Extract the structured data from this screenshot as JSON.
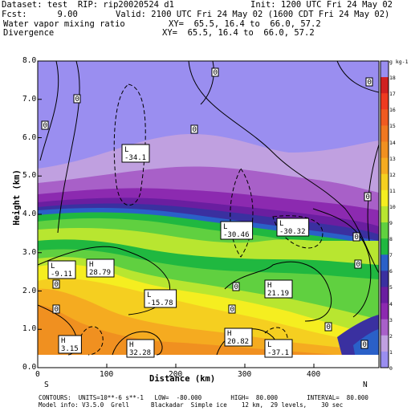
{
  "header": {
    "dataset_line": "Dataset: test  RIP: rip20020524 d1",
    "init_line": "Init: 1200 UTC Fri 24 May 02",
    "fcst_line": "Fcst:      9.00",
    "valid_line": "Valid: 2100 UTC Fri 24 May 02 (1600 CDT Fri 24 May 02)",
    "field1": "Water vapor mixing ratio",
    "xy1": "XY=  65.5, 16.4 to  66.0, 57.2",
    "field2": "Divergence",
    "xy2": "XY=  65.5, 16.4 to  66.0, 57.2"
  },
  "axes": {
    "ylabel": "Height (km)",
    "xlabel": "Distance (km)",
    "yticks": [
      "8.0",
      "7.0",
      "6.0",
      "5.0",
      "4.0",
      "3.0",
      "2.0",
      "1.0",
      "0.0"
    ],
    "xticks": [
      "0",
      "100",
      "200",
      "300",
      "400"
    ],
    "left_end": "S",
    "right_end": "N"
  },
  "colorbar": {
    "unit": "g kg-1",
    "ticks": [
      "18",
      "17",
      "16",
      "15",
      "14",
      "13",
      "12",
      "11",
      "10",
      "9",
      "8",
      "7",
      "6",
      "5",
      "4",
      "3",
      "2",
      "1",
      "0"
    ],
    "colors": [
      "#9a8ef0",
      "#d02020",
      "#ee3a20",
      "#f05a20",
      "#f07820",
      "#f09020",
      "#f5ab20",
      "#f5cf20",
      "#f5ee20",
      "#b8e630",
      "#60d040",
      "#20b840",
      "#2a60c8",
      "#3a30a0",
      "#6a1ea0",
      "#8c2ab0",
      "#a860c8",
      "#c0a0e0",
      "#9a8ef0"
    ]
  },
  "labels": [
    {
      "text": "L\n-34.1"
    },
    {
      "text": "L\n-30.46"
    },
    {
      "text": "L\n-30.32"
    },
    {
      "text": "L\n-9.11"
    },
    {
      "text": "H\n28.79"
    },
    {
      "text": "L\n-15.78"
    },
    {
      "text": "H\n21.19"
    },
    {
      "text": "H\n3.15"
    },
    {
      "text": "H\n32.28"
    },
    {
      "text": "H\n20.82"
    },
    {
      "text": "L\n-37.1"
    }
  ],
  "zero_labels": [
    "0",
    "0",
    "0",
    "0",
    "0",
    "0",
    "0",
    "0",
    "0",
    "0",
    "0",
    "0",
    "0",
    "0"
  ],
  "footer": {
    "line1": "CONTOURS:  UNITS=10**-6 s**-1   LOW=  -80.000        HIGH=  80.000        INTERVAL=  80.000",
    "line2": "Model info: V3.5.0  Grell      Blackadar  Simple ice    12 km,  29 levels,    30 sec"
  }
}
